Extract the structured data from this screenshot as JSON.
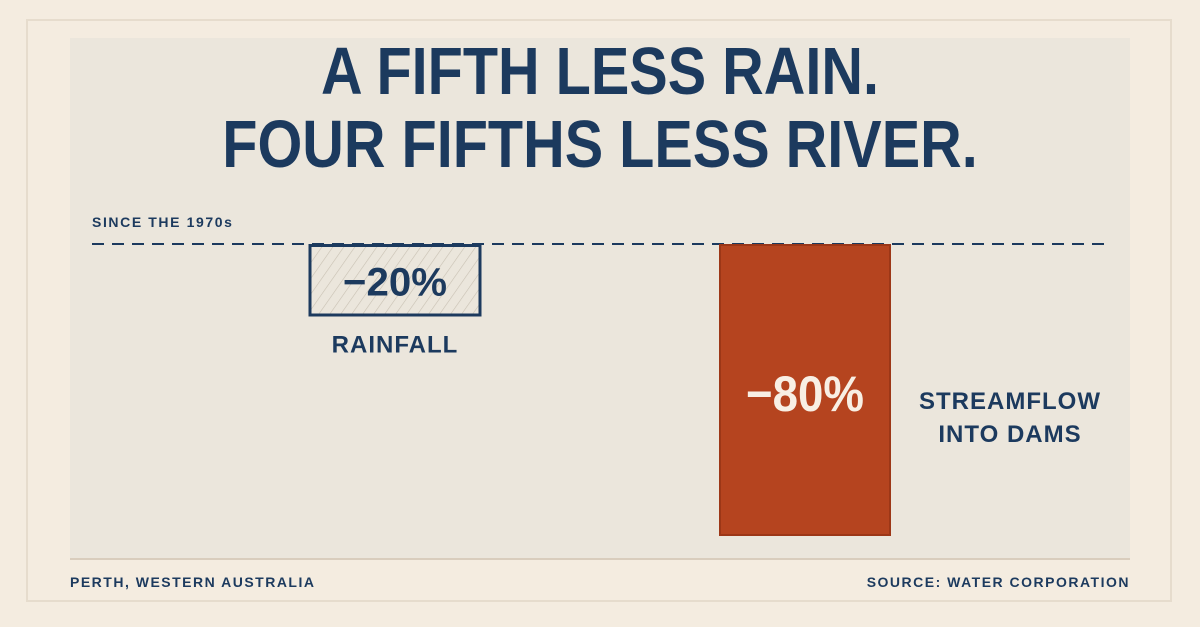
{
  "header": {
    "title_line1": "A FIFTH LESS RAIN.",
    "title_line2": "FOUR FIFTHS LESS RIVER.",
    "subtitle": "SINCE THE 1970s"
  },
  "footer": {
    "location": "PERTH, WESTERN AUSTRALIA",
    "source": "SOURCE: WATER CORPORATION"
  },
  "colors": {
    "navy": "#1c3a5e",
    "rust": "#b5441f",
    "panel": "#ebe6dc",
    "background": "#f4ece0"
  },
  "chart_data": {
    "type": "bar",
    "title": "A FIFTH LESS RAIN. FOUR FIFTHS LESS RIVER.",
    "subtitle": "SINCE THE 1970s",
    "baseline": 0,
    "ylim": [
      -100,
      0
    ],
    "categories": [
      "RAINFALL",
      "STREAMFLOW INTO DAMS"
    ],
    "values": [
      -20,
      -80
    ],
    "data_labels": [
      "−20%",
      "−80%"
    ],
    "category_labels": [
      [
        "RAINFALL"
      ],
      [
        "STREAMFLOW",
        "INTO DAMS"
      ]
    ],
    "styles": [
      "hatched-outline",
      "solid-rust"
    ],
    "grid": false,
    "legend": "none"
  }
}
